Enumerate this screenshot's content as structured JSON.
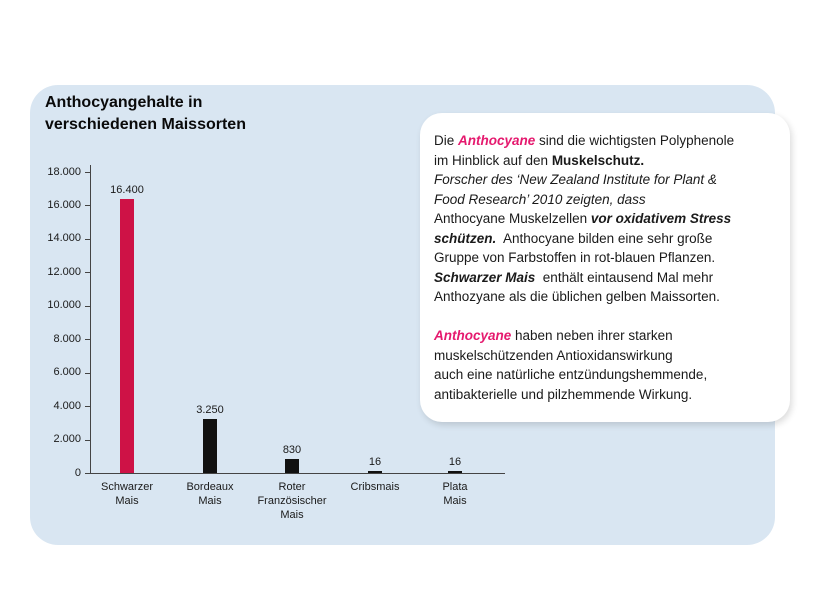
{
  "colors": {
    "accent_pink": "#e5196e",
    "bar_red": "#ce1246",
    "bar_black": "#111111",
    "panel_blue": "#d9e6f2",
    "axis": "#444444"
  },
  "title": "Anthocyangehalte in\nverschiedenen Maissorten",
  "chart_data": {
    "type": "bar",
    "title": "Anthocyangehalte in verschiedenen Maissorten",
    "categories": [
      "Schwarzer\nMais",
      "Bordeaux\nMais",
      "Roter\nFranzösischer\nMais",
      "Cribsmais",
      "Plata\nMais"
    ],
    "values": [
      16400,
      3250,
      830,
      16,
      16
    ],
    "value_labels": [
      "16.400",
      "3.250",
      "830",
      "16",
      "16"
    ],
    "bar_colors": [
      "#ce1246",
      "#111111",
      "#111111",
      "#111111",
      "#111111"
    ],
    "ylim": [
      0,
      18000
    ],
    "ytick_step": 2000,
    "ytick_labels": [
      "0",
      "2.000",
      "4.000",
      "6.000",
      "8.000",
      "10.000",
      "12.000",
      "14.000",
      "16.000",
      "18.000"
    ],
    "grid": false,
    "legend": false,
    "xlabel": "",
    "ylabel": ""
  },
  "infobox": {
    "lines": [
      [
        {
          "t": "Die ",
          "s": "n"
        },
        {
          "t": "Anthocyane",
          "s": "pb"
        },
        {
          "t": " sind die wichtigsten Polyphenole",
          "s": "n"
        }
      ],
      [
        {
          "t": "im Hinblick auf den ",
          "s": "n"
        },
        {
          "t": "Muskelschutz.",
          "s": "b"
        }
      ],
      [
        {
          "t": "Forscher des ‘New Zealand Institute for Plant &",
          "s": "i"
        }
      ],
      [
        {
          "t": "Food Research’ 2010 zeigten, dass",
          "s": "i"
        }
      ],
      [
        {
          "t": "Anthocyane Muskelzellen ",
          "s": "n"
        },
        {
          "t": "vor oxidativem Stress",
          "s": "bi"
        }
      ],
      [
        {
          "t": "schützen.",
          "s": "bi"
        },
        {
          "t": "  Anthocyane bilden eine sehr große",
          "s": "n"
        }
      ],
      [
        {
          "t": "Gruppe von Farbstoffen in rot-blauen Pflanzen.",
          "s": "n"
        }
      ],
      [
        {
          "t": "Schwarzer Mais",
          "s": "bi"
        },
        {
          "t": "  enthält eintausend Mal mehr",
          "s": "n"
        }
      ],
      [
        {
          "t": "Anthozyane als die üblichen gelben Maissorten.",
          "s": "n"
        }
      ],
      [],
      [
        {
          "t": "Anthocyane",
          "s": "pb"
        },
        {
          "t": " haben neben ihrer starken",
          "s": "n"
        }
      ],
      [
        {
          "t": "muskelschützenden Antioxidanswirkung",
          "s": "n"
        }
      ],
      [
        {
          "t": "auch eine natürliche entzündungshemmende,",
          "s": "n"
        }
      ],
      [
        {
          "t": "antibakterielle und pilzhemmende Wirkung.",
          "s": "n"
        }
      ]
    ]
  }
}
